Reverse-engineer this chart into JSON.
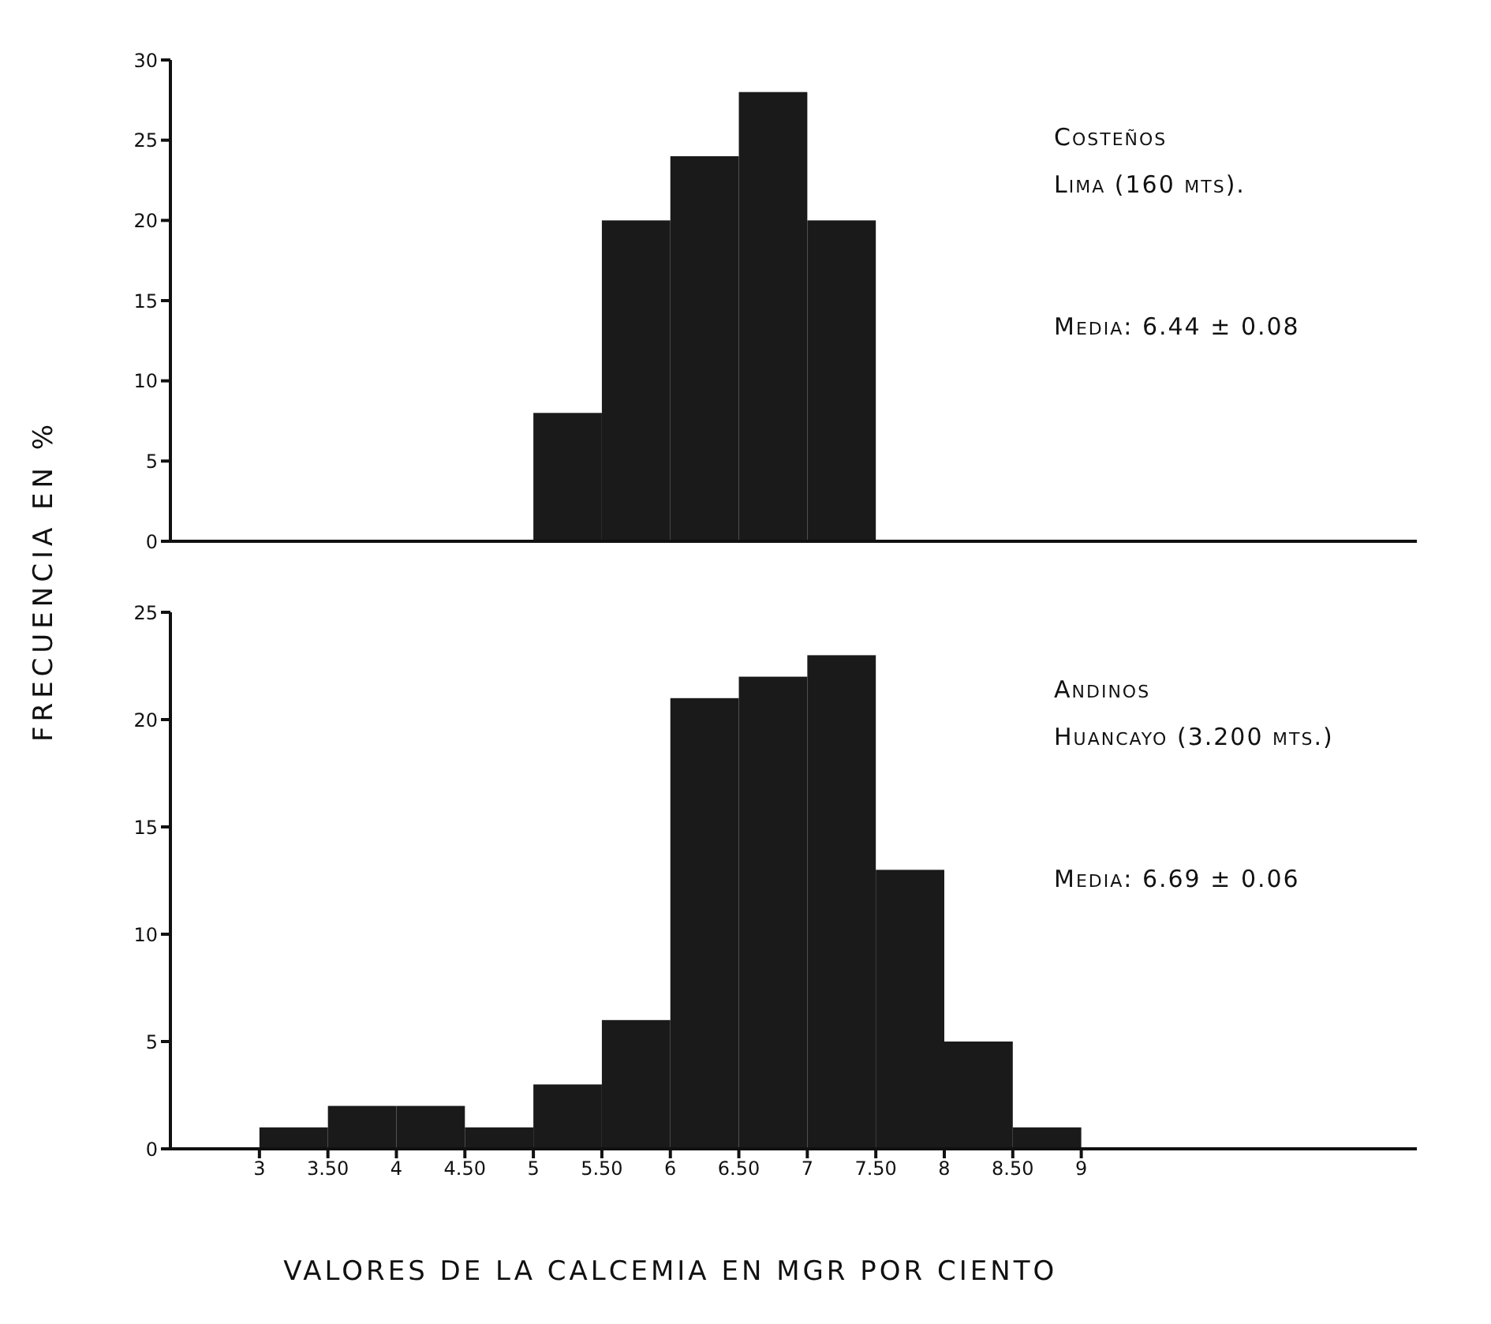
{
  "chart_data": [
    {
      "type": "histogram",
      "ylabel": "FRECUENCIA EN %",
      "bins": [
        5,
        5.5,
        6,
        6.5,
        7,
        7.5
      ],
      "values": [
        8,
        20,
        24,
        28,
        20
      ],
      "color": "#1a1a1a",
      "xlim": [
        2.35,
        11.45
      ],
      "ylim": [
        0,
        30
      ],
      "yticks": [
        0,
        5,
        10,
        15,
        20,
        25,
        30
      ],
      "tick_labels": "y",
      "grid": false,
      "annotations": [
        "Costeños",
        "Lima (160 mts).",
        "Media: 6.44 ± 0.08"
      ]
    },
    {
      "type": "histogram",
      "xlabel": "VALORES DE LA CALCEMIA EN MGR POR CIENTO",
      "bins": [
        3,
        3.5,
        4,
        4.5,
        5,
        5.5,
        6,
        6.5,
        7,
        7.5,
        8,
        8.5,
        9
      ],
      "values": [
        1,
        2,
        2,
        1,
        3,
        6,
        21,
        22,
        23,
        13,
        5,
        1
      ],
      "color": "#1a1a1a",
      "xlim": [
        2.35,
        11.45
      ],
      "ylim": [
        0,
        25
      ],
      "yticks": [
        0,
        5,
        10,
        15,
        20,
        25
      ],
      "xticks": [
        3,
        {
          "value": 3.5,
          "label": "3.50"
        },
        4,
        {
          "value": 4.5,
          "label": "4.50"
        },
        5,
        {
          "value": 5.5,
          "label": "5.50"
        },
        6,
        {
          "value": 6.5,
          "label": "6.50"
        },
        7,
        {
          "value": 7.5,
          "label": "7.50"
        },
        8,
        {
          "value": 8.5,
          "label": "8.50"
        },
        9
      ],
      "grid": false,
      "annotations": [
        "Andinos",
        "Huancayo (3.200 mts.)",
        "Media: 6.69 ± 0.06"
      ]
    }
  ]
}
